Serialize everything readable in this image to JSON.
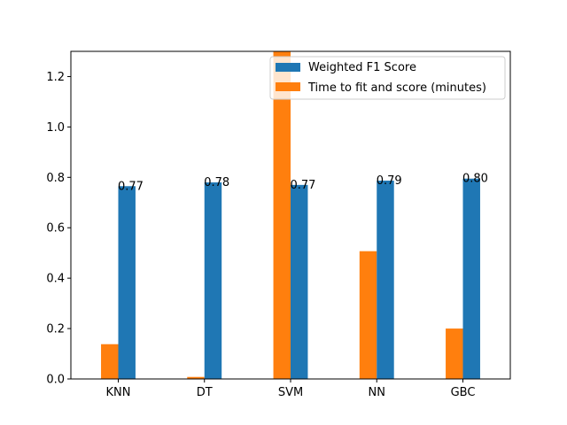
{
  "chart_data": {
    "type": "bar",
    "title": "",
    "xlabel": "",
    "ylabel": "",
    "categories": [
      "KNN",
      "DT",
      "SVM",
      "NN",
      "GBC"
    ],
    "ylim": [
      0,
      1.3
    ],
    "yticks": [
      "0.0",
      "0.2",
      "0.4",
      "0.6",
      "0.8",
      "1.0",
      "1.2"
    ],
    "grid": false,
    "legend_position": "top-right",
    "series": [
      {
        "name": "Weighted F1 Score",
        "color": "#1f77b4",
        "values": [
          0.765,
          0.78,
          0.77,
          0.787,
          0.795
        ],
        "labels": [
          "0.77",
          "0.78",
          "0.77",
          "0.79",
          "0.80"
        ]
      },
      {
        "name": "Time to fit and score (minutes)",
        "color": "#ff7f0e",
        "values": [
          0.138,
          0.008,
          1.35,
          0.507,
          0.2
        ],
        "labels": []
      }
    ]
  }
}
